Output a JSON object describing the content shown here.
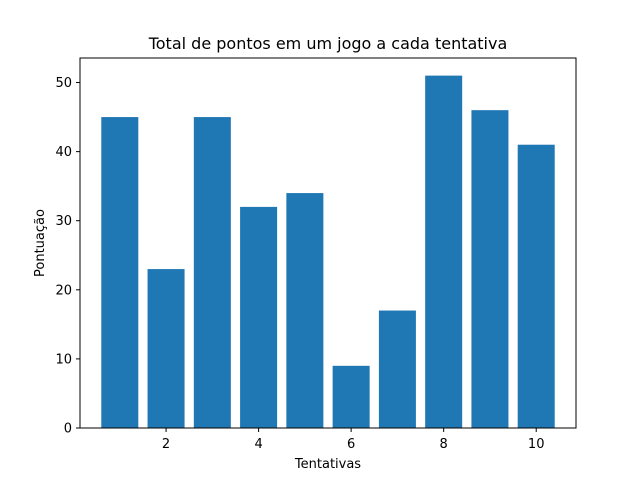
{
  "chart_data": {
    "type": "bar",
    "title": "Total de pontos em um jogo a cada tentativa",
    "xlabel": "Tentativas",
    "ylabel": "Pontuação",
    "x": [
      1,
      2,
      3,
      4,
      5,
      6,
      7,
      8,
      9,
      10
    ],
    "values": [
      45,
      23,
      45,
      32,
      34,
      9,
      17,
      51,
      46,
      41
    ],
    "xlim": [
      0.14,
      10.86
    ],
    "ylim": [
      0,
      53.55
    ],
    "xticks": [
      2,
      4,
      6,
      8,
      10
    ],
    "yticks": [
      0,
      10,
      20,
      30,
      40,
      50
    ],
    "bar_color": "#1f77b4",
    "grid": false
  }
}
